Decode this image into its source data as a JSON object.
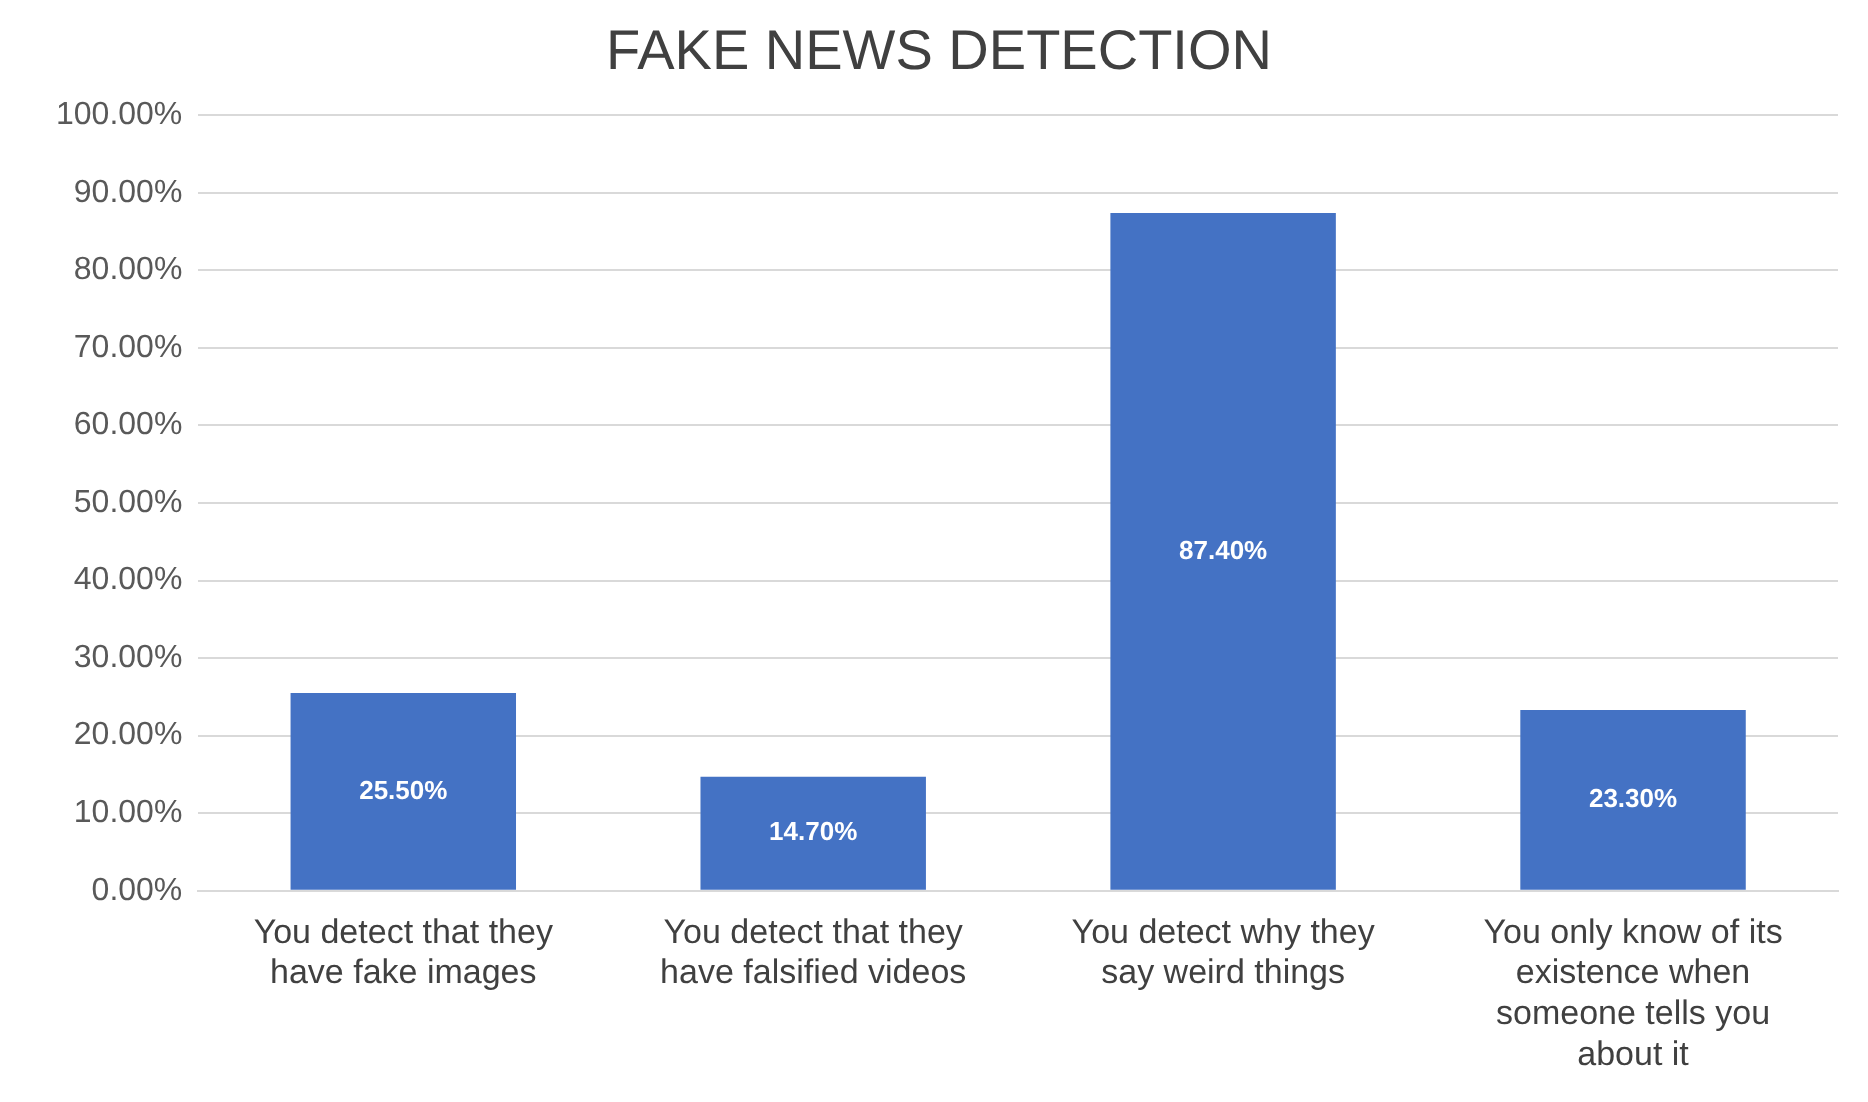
{
  "chart_data": {
    "type": "bar",
    "title": "FAKE NEWS DETECTION",
    "categories": [
      "You detect that they have fake images",
      "You detect that they have falsified videos",
      "You detect why they say weird things",
      "You only know of its existence when someone tells you about it"
    ],
    "values": [
      25.5,
      14.7,
      87.4,
      23.3
    ],
    "value_labels": [
      "25.50%",
      "14.70%",
      "87.40%",
      "23.30%"
    ],
    "color": "#4472c4",
    "ylim": [
      0,
      100
    ],
    "yticks": [
      {
        "value": 0,
        "label": "0.00%"
      },
      {
        "value": 10,
        "label": "10.00%"
      },
      {
        "value": 20,
        "label": "20.00%"
      },
      {
        "value": 30,
        "label": "30.00%"
      },
      {
        "value": 40,
        "label": "40.00%"
      },
      {
        "value": 50,
        "label": "50.00%"
      },
      {
        "value": 60,
        "label": "60.00%"
      },
      {
        "value": 70,
        "label": "70.00%"
      },
      {
        "value": 80,
        "label": "80.00%"
      },
      {
        "value": 90,
        "label": "90.00%"
      },
      {
        "value": 100,
        "label": "100.00%"
      }
    ],
    "grid": "y",
    "legend": false
  }
}
